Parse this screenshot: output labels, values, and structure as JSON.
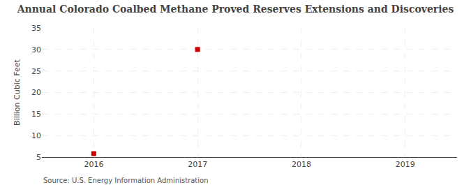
{
  "chart_data": {
    "type": "scatter",
    "title": "Annual Colorado Coalbed Methane Proved Reserves Extensions and Discoveries",
    "ylabel": "Billion Cubic Feet",
    "annotations": [
      "Source: U.S. Energy Information Administration"
    ],
    "x": [
      2016,
      2017
    ],
    "values": [
      5.8,
      30.0
    ],
    "color": "#cc0000",
    "marker": "square",
    "xlim": [
      2015.5,
      2019.5
    ],
    "xticks": [
      2016,
      2017,
      2018,
      2019
    ],
    "ylim": [
      5,
      35
    ],
    "yticks": [
      5,
      10,
      15,
      20,
      25,
      30,
      35
    ],
    "grid": true
  }
}
